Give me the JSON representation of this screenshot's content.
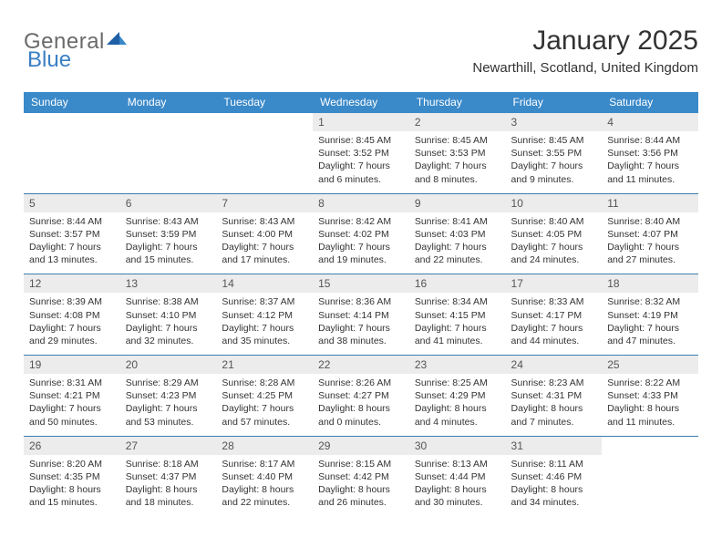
{
  "brand": {
    "part1": "General",
    "part2": "Blue"
  },
  "title": "January 2025",
  "location": "Newarthill, Scotland, United Kingdom",
  "colors": {
    "header_bg": "#3a89c9",
    "header_text": "#ffffff",
    "daynum_bg": "#ececec",
    "row_border": "#3a7fb0",
    "logo_gray": "#6a6a6a",
    "logo_blue": "#3a7fc4",
    "body_text": "#333333",
    "page_bg": "#ffffff"
  },
  "typography": {
    "title_fontsize": 30,
    "location_fontsize": 15,
    "dayhead_fontsize": 12,
    "daynum_fontsize": 12,
    "dayinfo_fontsize": 10.5
  },
  "day_headers": [
    "Sunday",
    "Monday",
    "Tuesday",
    "Wednesday",
    "Thursday",
    "Friday",
    "Saturday"
  ],
  "weeks": [
    [
      {
        "num": "",
        "sunrise": "",
        "sunset": "",
        "daylight1": "",
        "daylight2": ""
      },
      {
        "num": "",
        "sunrise": "",
        "sunset": "",
        "daylight1": "",
        "daylight2": ""
      },
      {
        "num": "",
        "sunrise": "",
        "sunset": "",
        "daylight1": "",
        "daylight2": ""
      },
      {
        "num": "1",
        "sunrise": "Sunrise: 8:45 AM",
        "sunset": "Sunset: 3:52 PM",
        "daylight1": "Daylight: 7 hours",
        "daylight2": "and 6 minutes."
      },
      {
        "num": "2",
        "sunrise": "Sunrise: 8:45 AM",
        "sunset": "Sunset: 3:53 PM",
        "daylight1": "Daylight: 7 hours",
        "daylight2": "and 8 minutes."
      },
      {
        "num": "3",
        "sunrise": "Sunrise: 8:45 AM",
        "sunset": "Sunset: 3:55 PM",
        "daylight1": "Daylight: 7 hours",
        "daylight2": "and 9 minutes."
      },
      {
        "num": "4",
        "sunrise": "Sunrise: 8:44 AM",
        "sunset": "Sunset: 3:56 PM",
        "daylight1": "Daylight: 7 hours",
        "daylight2": "and 11 minutes."
      }
    ],
    [
      {
        "num": "5",
        "sunrise": "Sunrise: 8:44 AM",
        "sunset": "Sunset: 3:57 PM",
        "daylight1": "Daylight: 7 hours",
        "daylight2": "and 13 minutes."
      },
      {
        "num": "6",
        "sunrise": "Sunrise: 8:43 AM",
        "sunset": "Sunset: 3:59 PM",
        "daylight1": "Daylight: 7 hours",
        "daylight2": "and 15 minutes."
      },
      {
        "num": "7",
        "sunrise": "Sunrise: 8:43 AM",
        "sunset": "Sunset: 4:00 PM",
        "daylight1": "Daylight: 7 hours",
        "daylight2": "and 17 minutes."
      },
      {
        "num": "8",
        "sunrise": "Sunrise: 8:42 AM",
        "sunset": "Sunset: 4:02 PM",
        "daylight1": "Daylight: 7 hours",
        "daylight2": "and 19 minutes."
      },
      {
        "num": "9",
        "sunrise": "Sunrise: 8:41 AM",
        "sunset": "Sunset: 4:03 PM",
        "daylight1": "Daylight: 7 hours",
        "daylight2": "and 22 minutes."
      },
      {
        "num": "10",
        "sunrise": "Sunrise: 8:40 AM",
        "sunset": "Sunset: 4:05 PM",
        "daylight1": "Daylight: 7 hours",
        "daylight2": "and 24 minutes."
      },
      {
        "num": "11",
        "sunrise": "Sunrise: 8:40 AM",
        "sunset": "Sunset: 4:07 PM",
        "daylight1": "Daylight: 7 hours",
        "daylight2": "and 27 minutes."
      }
    ],
    [
      {
        "num": "12",
        "sunrise": "Sunrise: 8:39 AM",
        "sunset": "Sunset: 4:08 PM",
        "daylight1": "Daylight: 7 hours",
        "daylight2": "and 29 minutes."
      },
      {
        "num": "13",
        "sunrise": "Sunrise: 8:38 AM",
        "sunset": "Sunset: 4:10 PM",
        "daylight1": "Daylight: 7 hours",
        "daylight2": "and 32 minutes."
      },
      {
        "num": "14",
        "sunrise": "Sunrise: 8:37 AM",
        "sunset": "Sunset: 4:12 PM",
        "daylight1": "Daylight: 7 hours",
        "daylight2": "and 35 minutes."
      },
      {
        "num": "15",
        "sunrise": "Sunrise: 8:36 AM",
        "sunset": "Sunset: 4:14 PM",
        "daylight1": "Daylight: 7 hours",
        "daylight2": "and 38 minutes."
      },
      {
        "num": "16",
        "sunrise": "Sunrise: 8:34 AM",
        "sunset": "Sunset: 4:15 PM",
        "daylight1": "Daylight: 7 hours",
        "daylight2": "and 41 minutes."
      },
      {
        "num": "17",
        "sunrise": "Sunrise: 8:33 AM",
        "sunset": "Sunset: 4:17 PM",
        "daylight1": "Daylight: 7 hours",
        "daylight2": "and 44 minutes."
      },
      {
        "num": "18",
        "sunrise": "Sunrise: 8:32 AM",
        "sunset": "Sunset: 4:19 PM",
        "daylight1": "Daylight: 7 hours",
        "daylight2": "and 47 minutes."
      }
    ],
    [
      {
        "num": "19",
        "sunrise": "Sunrise: 8:31 AM",
        "sunset": "Sunset: 4:21 PM",
        "daylight1": "Daylight: 7 hours",
        "daylight2": "and 50 minutes."
      },
      {
        "num": "20",
        "sunrise": "Sunrise: 8:29 AM",
        "sunset": "Sunset: 4:23 PM",
        "daylight1": "Daylight: 7 hours",
        "daylight2": "and 53 minutes."
      },
      {
        "num": "21",
        "sunrise": "Sunrise: 8:28 AM",
        "sunset": "Sunset: 4:25 PM",
        "daylight1": "Daylight: 7 hours",
        "daylight2": "and 57 minutes."
      },
      {
        "num": "22",
        "sunrise": "Sunrise: 8:26 AM",
        "sunset": "Sunset: 4:27 PM",
        "daylight1": "Daylight: 8 hours",
        "daylight2": "and 0 minutes."
      },
      {
        "num": "23",
        "sunrise": "Sunrise: 8:25 AM",
        "sunset": "Sunset: 4:29 PM",
        "daylight1": "Daylight: 8 hours",
        "daylight2": "and 4 minutes."
      },
      {
        "num": "24",
        "sunrise": "Sunrise: 8:23 AM",
        "sunset": "Sunset: 4:31 PM",
        "daylight1": "Daylight: 8 hours",
        "daylight2": "and 7 minutes."
      },
      {
        "num": "25",
        "sunrise": "Sunrise: 8:22 AM",
        "sunset": "Sunset: 4:33 PM",
        "daylight1": "Daylight: 8 hours",
        "daylight2": "and 11 minutes."
      }
    ],
    [
      {
        "num": "26",
        "sunrise": "Sunrise: 8:20 AM",
        "sunset": "Sunset: 4:35 PM",
        "daylight1": "Daylight: 8 hours",
        "daylight2": "and 15 minutes."
      },
      {
        "num": "27",
        "sunrise": "Sunrise: 8:18 AM",
        "sunset": "Sunset: 4:37 PM",
        "daylight1": "Daylight: 8 hours",
        "daylight2": "and 18 minutes."
      },
      {
        "num": "28",
        "sunrise": "Sunrise: 8:17 AM",
        "sunset": "Sunset: 4:40 PM",
        "daylight1": "Daylight: 8 hours",
        "daylight2": "and 22 minutes."
      },
      {
        "num": "29",
        "sunrise": "Sunrise: 8:15 AM",
        "sunset": "Sunset: 4:42 PM",
        "daylight1": "Daylight: 8 hours",
        "daylight2": "and 26 minutes."
      },
      {
        "num": "30",
        "sunrise": "Sunrise: 8:13 AM",
        "sunset": "Sunset: 4:44 PM",
        "daylight1": "Daylight: 8 hours",
        "daylight2": "and 30 minutes."
      },
      {
        "num": "31",
        "sunrise": "Sunrise: 8:11 AM",
        "sunset": "Sunset: 4:46 PM",
        "daylight1": "Daylight: 8 hours",
        "daylight2": "and 34 minutes."
      },
      {
        "num": "",
        "sunrise": "",
        "sunset": "",
        "daylight1": "",
        "daylight2": ""
      }
    ]
  ]
}
